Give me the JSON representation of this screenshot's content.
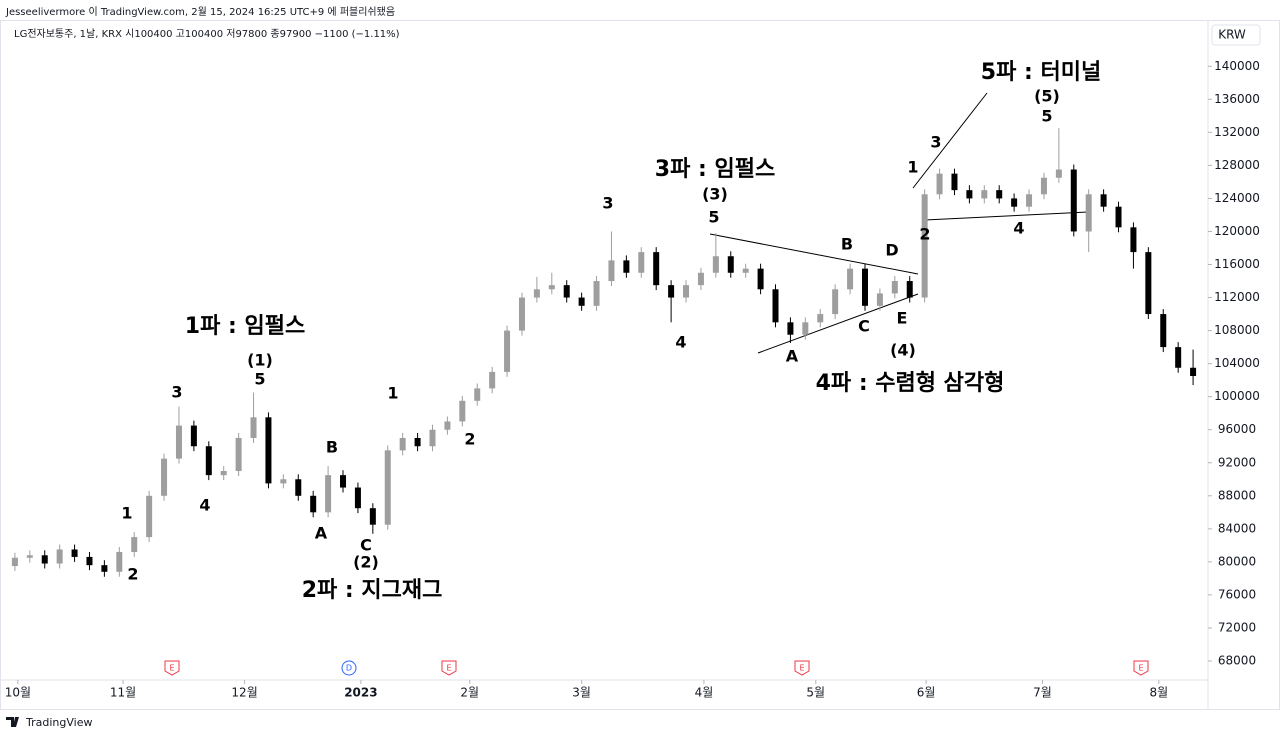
{
  "header": "Jesseelivermore 이 TradingView.com, 2월 15, 2024 16:25 UTC+9 에 퍼블리쉬됐음",
  "footer": "TradingView",
  "chart_data": {
    "type": "candlestick",
    "title": "LG전자보통주, 1날, KRX  시100400  고100400  저97800  종97900  −1100 (−1.11%)",
    "currency": "KRW",
    "up_color": "#9e9e9e",
    "down_color": "#000000",
    "open": [
      79500,
      80500,
      80800,
      79800,
      81500,
      80600,
      79600,
      78800,
      81200,
      83000,
      88000,
      92500,
      96500,
      94000,
      90500,
      91000,
      95000,
      97500,
      89500,
      90000,
      88000,
      86000,
      90500,
      89000,
      86500,
      84500,
      93500,
      95000,
      94000,
      96000,
      97000,
      99500,
      101000,
      103000,
      108000,
      112000,
      113000,
      113500,
      112000,
      111000,
      114000,
      116500,
      115000,
      117500,
      113500,
      112000,
      113500,
      115000,
      117000,
      115000,
      115500,
      113000,
      109000,
      107500,
      109000,
      110000,
      113000,
      115500,
      111000,
      112500,
      114000,
      112000,
      124500,
      127000,
      125000,
      124000,
      125000,
      124000,
      123000,
      124500,
      126500,
      127500,
      120000,
      124500,
      123000,
      120500,
      117500,
      110000,
      106000,
      103500
    ],
    "high": [
      81100,
      81400,
      81400,
      82100,
      82100,
      81200,
      80200,
      81800,
      83600,
      88600,
      93100,
      98800,
      97100,
      94600,
      91600,
      95600,
      100500,
      98100,
      90600,
      90600,
      88600,
      91600,
      91100,
      89600,
      87100,
      94100,
      95600,
      95600,
      96600,
      97600,
      100100,
      101600,
      103600,
      108600,
      112600,
      114500,
      115000,
      114100,
      112600,
      114600,
      120000,
      117100,
      118100,
      118100,
      114100,
      114100,
      115600,
      119800,
      117600,
      116100,
      116100,
      113600,
      109600,
      109600,
      110600,
      113600,
      116100,
      116100,
      113100,
      114600,
      114600,
      125100,
      127600,
      127600,
      125600,
      125600,
      125600,
      124600,
      125100,
      127100,
      132500,
      128100,
      125100,
      125100,
      123600,
      121100,
      118100,
      110600,
      106600,
      105700
    ],
    "low": [
      78900,
      79900,
      79200,
      79200,
      80000,
      79000,
      78200,
      78200,
      80600,
      82400,
      87400,
      91900,
      93400,
      89900,
      89900,
      90400,
      94400,
      88900,
      88900,
      87400,
      85400,
      85400,
      88400,
      85900,
      83400,
      83900,
      92900,
      93400,
      93400,
      95400,
      96400,
      98900,
      100400,
      102400,
      107400,
      111400,
      112400,
      111400,
      110400,
      110400,
      113400,
      114400,
      114400,
      112900,
      109000,
      111400,
      112900,
      114400,
      114400,
      114400,
      112400,
      108400,
      106500,
      106900,
      108400,
      109400,
      112400,
      110400,
      110400,
      111900,
      111400,
      111400,
      123900,
      124400,
      123400,
      123400,
      123400,
      122400,
      122400,
      123900,
      125900,
      119400,
      117500,
      122400,
      119900,
      115500,
      109400,
      105400,
      102900,
      101400
    ],
    "close": [
      80500,
      80800,
      79800,
      81500,
      80600,
      79600,
      78800,
      81200,
      83000,
      88000,
      92500,
      96500,
      94000,
      90500,
      91000,
      95000,
      97500,
      89500,
      90000,
      88000,
      86000,
      90500,
      89000,
      86500,
      84500,
      93500,
      95000,
      94000,
      96000,
      97000,
      99500,
      101000,
      103000,
      108000,
      112000,
      113000,
      113500,
      112000,
      111000,
      114000,
      116500,
      115000,
      117500,
      113500,
      112000,
      113500,
      115000,
      117000,
      115000,
      115500,
      113000,
      109000,
      107500,
      109000,
      110000,
      113000,
      115500,
      111000,
      112500,
      114000,
      112000,
      124500,
      127000,
      125000,
      124000,
      125000,
      124000,
      123000,
      124500,
      126500,
      127500,
      120000,
      124500,
      123000,
      120500,
      117500,
      110000,
      106000,
      103500,
      102500
    ],
    "xlim": [
      -1,
      80
    ],
    "xticks": [
      {
        "value": 0.2,
        "label": "10월"
      },
      {
        "value": 7.25,
        "label": "11월"
      },
      {
        "value": 15.4,
        "label": "12월"
      },
      {
        "value": 23.2,
        "label": "2023"
      },
      {
        "value": 30.5,
        "label": "2월"
      },
      {
        "value": 38,
        "label": "3월"
      },
      {
        "value": 46.2,
        "label": "4월"
      },
      {
        "value": 53.7,
        "label": "5월"
      },
      {
        "value": 61.1,
        "label": "6월"
      },
      {
        "value": 68.9,
        "label": "7월"
      },
      {
        "value": 76.7,
        "label": "8월"
      }
    ],
    "ylim": [
      65700,
      145600
    ],
    "yticks": [
      68000,
      72000,
      76000,
      80000,
      84000,
      88000,
      92000,
      96000,
      100000,
      104000,
      108000,
      112000,
      116000,
      120000,
      124000,
      128000,
      132000,
      136000,
      140000
    ],
    "annotations": [
      "1파 : 임펄스",
      "(1)",
      "5",
      "3",
      "1",
      "2",
      "4",
      "B",
      "A",
      "C",
      "(2)",
      "2파 : 지그재그",
      "1",
      "2",
      "3",
      "3파 : 임펄스",
      "(3)",
      "5",
      "4",
      "B",
      "D",
      "C",
      "E",
      "A",
      "(4)",
      "4파 : 수렴형 삼각형",
      "1",
      "3",
      "2",
      "4",
      "(5)",
      "5",
      "5파 : 터미널"
    ],
    "events": [
      "E",
      "D",
      "E",
      "E",
      "E"
    ]
  }
}
